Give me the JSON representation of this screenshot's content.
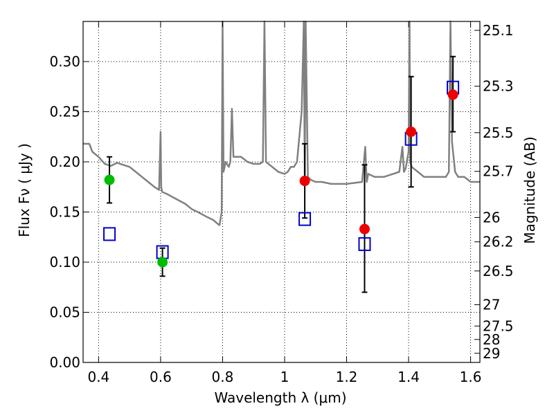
{
  "chart_data": {
    "type": "scatter",
    "xlabel": "Wavelength  λ (μm)",
    "ylabel": "Flux  Fν ( μJy )",
    "y2label": "Magnitude (AB)",
    "xlim": [
      0.35,
      1.63
    ],
    "ylim": [
      0.0,
      0.34
    ],
    "x_ticks": [
      0.4,
      0.6,
      0.8,
      1.0,
      1.2,
      1.4,
      1.6
    ],
    "x_tick_labels": [
      "0.4",
      "0.6",
      "0.8",
      "1",
      "1.2",
      "1.4",
      "1.6"
    ],
    "y_ticks": [
      0.0,
      0.05,
      0.1,
      0.15,
      0.2,
      0.25,
      0.3
    ],
    "y_tick_labels": [
      "0.00",
      "0.05",
      "0.10",
      "0.15",
      "0.20",
      "0.25",
      "0.30"
    ],
    "y2_tick_labels": [
      "25.1",
      "25.3",
      "25.5",
      "25.7",
      "26",
      "26.2",
      "26.5",
      "27",
      "27.5",
      "28",
      "29"
    ],
    "grid": true,
    "colors": {
      "model": "#808080",
      "photometry_green": "#00bb00",
      "photometry_red": "#ee0000",
      "model_box": "#0000cc",
      "errorbar": "#000000"
    },
    "series": [
      {
        "marker": "circle",
        "color": "#00bb00",
        "x": [
          0.435,
          0.606
        ],
        "y": [
          0.182,
          0.1
        ],
        "yerr_low": [
          0.159,
          0.086
        ],
        "yerr_high": [
          0.205,
          0.114
        ]
      },
      {
        "marker": "circle",
        "color": "#ee0000",
        "x": [
          1.065,
          1.258,
          1.408,
          1.543
        ],
        "y": [
          0.181,
          0.133,
          0.23,
          0.267
        ],
        "yerr_low": [
          0.144,
          0.07,
          0.175,
          0.23
        ],
        "yerr_high": [
          0.218,
          0.197,
          0.285,
          0.305
        ]
      },
      {
        "marker": "open-square",
        "color": "#0000cc",
        "x": [
          0.435,
          0.606,
          1.065,
          1.258,
          1.408,
          1.543
        ],
        "y": [
          0.128,
          0.11,
          0.143,
          0.118,
          0.223,
          0.274
        ]
      },
      {
        "marker": "line",
        "color": "#808080",
        "x": [
          0.35,
          0.37,
          0.38,
          0.4,
          0.42,
          0.44,
          0.46,
          0.48,
          0.5,
          0.52,
          0.54,
          0.56,
          0.58,
          0.595,
          0.6,
          0.602,
          0.605,
          0.62,
          0.65,
          0.68,
          0.7,
          0.72,
          0.75,
          0.77,
          0.785,
          0.79,
          0.797,
          0.8,
          0.803,
          0.81,
          0.82,
          0.825,
          0.83,
          0.835,
          0.84,
          0.86,
          0.88,
          0.9,
          0.92,
          0.93,
          0.935,
          0.94,
          0.96,
          0.98,
          1.0,
          1.01,
          1.02,
          1.03,
          1.04,
          1.055,
          1.062,
          1.065,
          1.068,
          1.075,
          1.085,
          1.1,
          1.12,
          1.15,
          1.2,
          1.25,
          1.26,
          1.265,
          1.27,
          1.29,
          1.32,
          1.35,
          1.37,
          1.38,
          1.385,
          1.39,
          1.4,
          1.403,
          1.405,
          1.41,
          1.43,
          1.45,
          1.48,
          1.5,
          1.52,
          1.53,
          1.535,
          1.54,
          1.55,
          1.56,
          1.58,
          1.6,
          1.63
        ],
        "y": [
          0.218,
          0.218,
          0.21,
          0.205,
          0.198,
          0.196,
          0.199,
          0.197,
          0.195,
          0.19,
          0.185,
          0.18,
          0.175,
          0.172,
          0.23,
          0.175,
          0.17,
          0.168,
          0.163,
          0.158,
          0.153,
          0.15,
          0.145,
          0.142,
          0.138,
          0.137,
          0.15,
          0.34,
          0.19,
          0.2,
          0.195,
          0.2,
          0.253,
          0.205,
          0.205,
          0.205,
          0.2,
          0.198,
          0.198,
          0.2,
          0.34,
          0.2,
          0.195,
          0.19,
          0.188,
          0.19,
          0.195,
          0.195,
          0.2,
          0.25,
          0.34,
          0.182,
          0.34,
          0.185,
          0.182,
          0.18,
          0.18,
          0.178,
          0.178,
          0.18,
          0.215,
          0.18,
          0.188,
          0.185,
          0.185,
          0.188,
          0.19,
          0.215,
          0.19,
          0.193,
          0.21,
          0.34,
          0.2,
          0.195,
          0.19,
          0.185,
          0.185,
          0.185,
          0.185,
          0.19,
          0.34,
          0.22,
          0.19,
          0.185,
          0.185,
          0.18,
          0.18
        ]
      }
    ]
  }
}
